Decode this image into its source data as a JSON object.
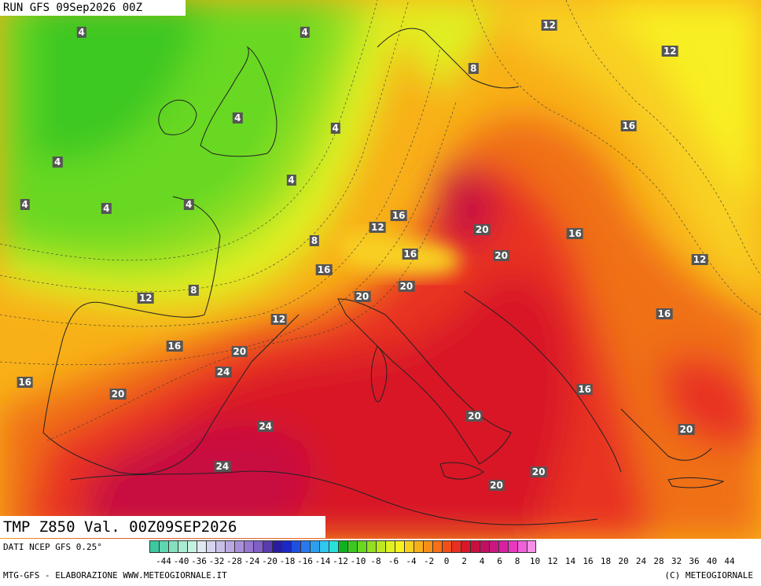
{
  "header": {
    "run_title": "RUN GFS 09Sep2026 00Z"
  },
  "map": {
    "variable_title": "TMP Z850 Val. 00Z09SEP2026",
    "labels": [
      {
        "text": "4",
        "lon": -22.5,
        "lat": 63.3
      },
      {
        "text": "4",
        "lon": 0.8,
        "lat": 63.3
      },
      {
        "text": "12",
        "lon": 26.3,
        "lat": 63.8
      },
      {
        "text": "8",
        "lon": 18.4,
        "lat": 60.6
      },
      {
        "text": "12",
        "lon": 38.9,
        "lat": 61.9
      },
      {
        "text": "16",
        "lon": 34.6,
        "lat": 56.3
      },
      {
        "text": "4",
        "lon": -6.2,
        "lat": 56.9
      },
      {
        "text": "4",
        "lon": 4.0,
        "lat": 56.1
      },
      {
        "text": "4",
        "lon": -25.0,
        "lat": 53.6
      },
      {
        "text": "4",
        "lon": -0.6,
        "lat": 52.2
      },
      {
        "text": "4",
        "lon": -28.4,
        "lat": 50.4
      },
      {
        "text": "4",
        "lon": -11.3,
        "lat": 50.4
      },
      {
        "text": "4",
        "lon": -19.9,
        "lat": 50.1
      },
      {
        "text": "16",
        "lon": 10.6,
        "lat": 49.6
      },
      {
        "text": "12",
        "lon": 8.4,
        "lat": 48.7
      },
      {
        "text": "20",
        "lon": 19.3,
        "lat": 48.5
      },
      {
        "text": "16",
        "lon": 29.0,
        "lat": 48.2
      },
      {
        "text": "8",
        "lon": 1.8,
        "lat": 47.7
      },
      {
        "text": "16",
        "lon": 11.8,
        "lat": 46.7
      },
      {
        "text": "20",
        "lon": 21.3,
        "lat": 46.6
      },
      {
        "text": "12",
        "lon": 42.0,
        "lat": 46.3
      },
      {
        "text": "16",
        "lon": 2.8,
        "lat": 45.5
      },
      {
        "text": "20",
        "lon": 11.4,
        "lat": 44.3
      },
      {
        "text": "8",
        "lon": -10.8,
        "lat": 44.0
      },
      {
        "text": "12",
        "lon": -15.8,
        "lat": 43.4
      },
      {
        "text": "20",
        "lon": 6.8,
        "lat": 43.5
      },
      {
        "text": "16",
        "lon": 38.3,
        "lat": 42.2
      },
      {
        "text": "12",
        "lon": -1.9,
        "lat": 41.8
      },
      {
        "text": "16",
        "lon": -12.8,
        "lat": 39.8
      },
      {
        "text": "20",
        "lon": -6.0,
        "lat": 39.4
      },
      {
        "text": "24",
        "lon": -7.7,
        "lat": 37.9
      },
      {
        "text": "16",
        "lon": -28.4,
        "lat": 37.1
      },
      {
        "text": "16",
        "lon": 30.0,
        "lat": 36.6
      },
      {
        "text": "20",
        "lon": -18.7,
        "lat": 36.2
      },
      {
        "text": "20",
        "lon": 18.5,
        "lat": 34.6
      },
      {
        "text": "24",
        "lon": -3.3,
        "lat": 33.8
      },
      {
        "text": "20",
        "lon": 40.6,
        "lat": 33.6
      },
      {
        "text": "24",
        "lon": -7.8,
        "lat": 30.8
      },
      {
        "text": "20",
        "lon": 25.2,
        "lat": 30.4
      },
      {
        "text": "20",
        "lon": 20.8,
        "lat": 29.4
      }
    ]
  },
  "legend": {
    "source_label": "DATI NCEP GFS 0.25°",
    "ticks": [
      "-44",
      "-40",
      "-36",
      "-32",
      "-28",
      "-24",
      "-20",
      "-18",
      "-16",
      "-14",
      "-12",
      "-10",
      "-8",
      "-6",
      "-4",
      "-2",
      "0",
      "2",
      "4",
      "6",
      "8",
      "10",
      "12",
      "14",
      "16",
      "18",
      "20",
      "24",
      "28",
      "32",
      "36",
      "40",
      "44"
    ],
    "colors": [
      "#3ec8a0",
      "#5fd6b0",
      "#86e0c0",
      "#a8ead2",
      "#c6f0e0",
      "#e0e8f2",
      "#d4d4ee",
      "#c8bfe8",
      "#bba8e2",
      "#a890d8",
      "#9676ce",
      "#8060c4",
      "#5a3cb0",
      "#2a1ca0",
      "#1a28c8",
      "#1e50e0",
      "#2878f0",
      "#2ca0f0",
      "#30c8f0",
      "#2ae0d8",
      "#10b020",
      "#3cc820",
      "#68d820",
      "#94e020",
      "#bce820",
      "#e0f020",
      "#f8f020",
      "#f8d020",
      "#f8b018",
      "#f89018",
      "#f87018",
      "#f05018",
      "#e83020",
      "#d81828",
      "#c81040",
      "#c01060",
      "#c81880",
      "#d820a0",
      "#e838c0",
      "#f060d8",
      "#f890e8"
    ],
    "credit_left": "MTG-GFS - ELABORAZIONE WWW.METEOGIORNALE.IT",
    "credit_right": "(C) METEOGIORNALE"
  }
}
